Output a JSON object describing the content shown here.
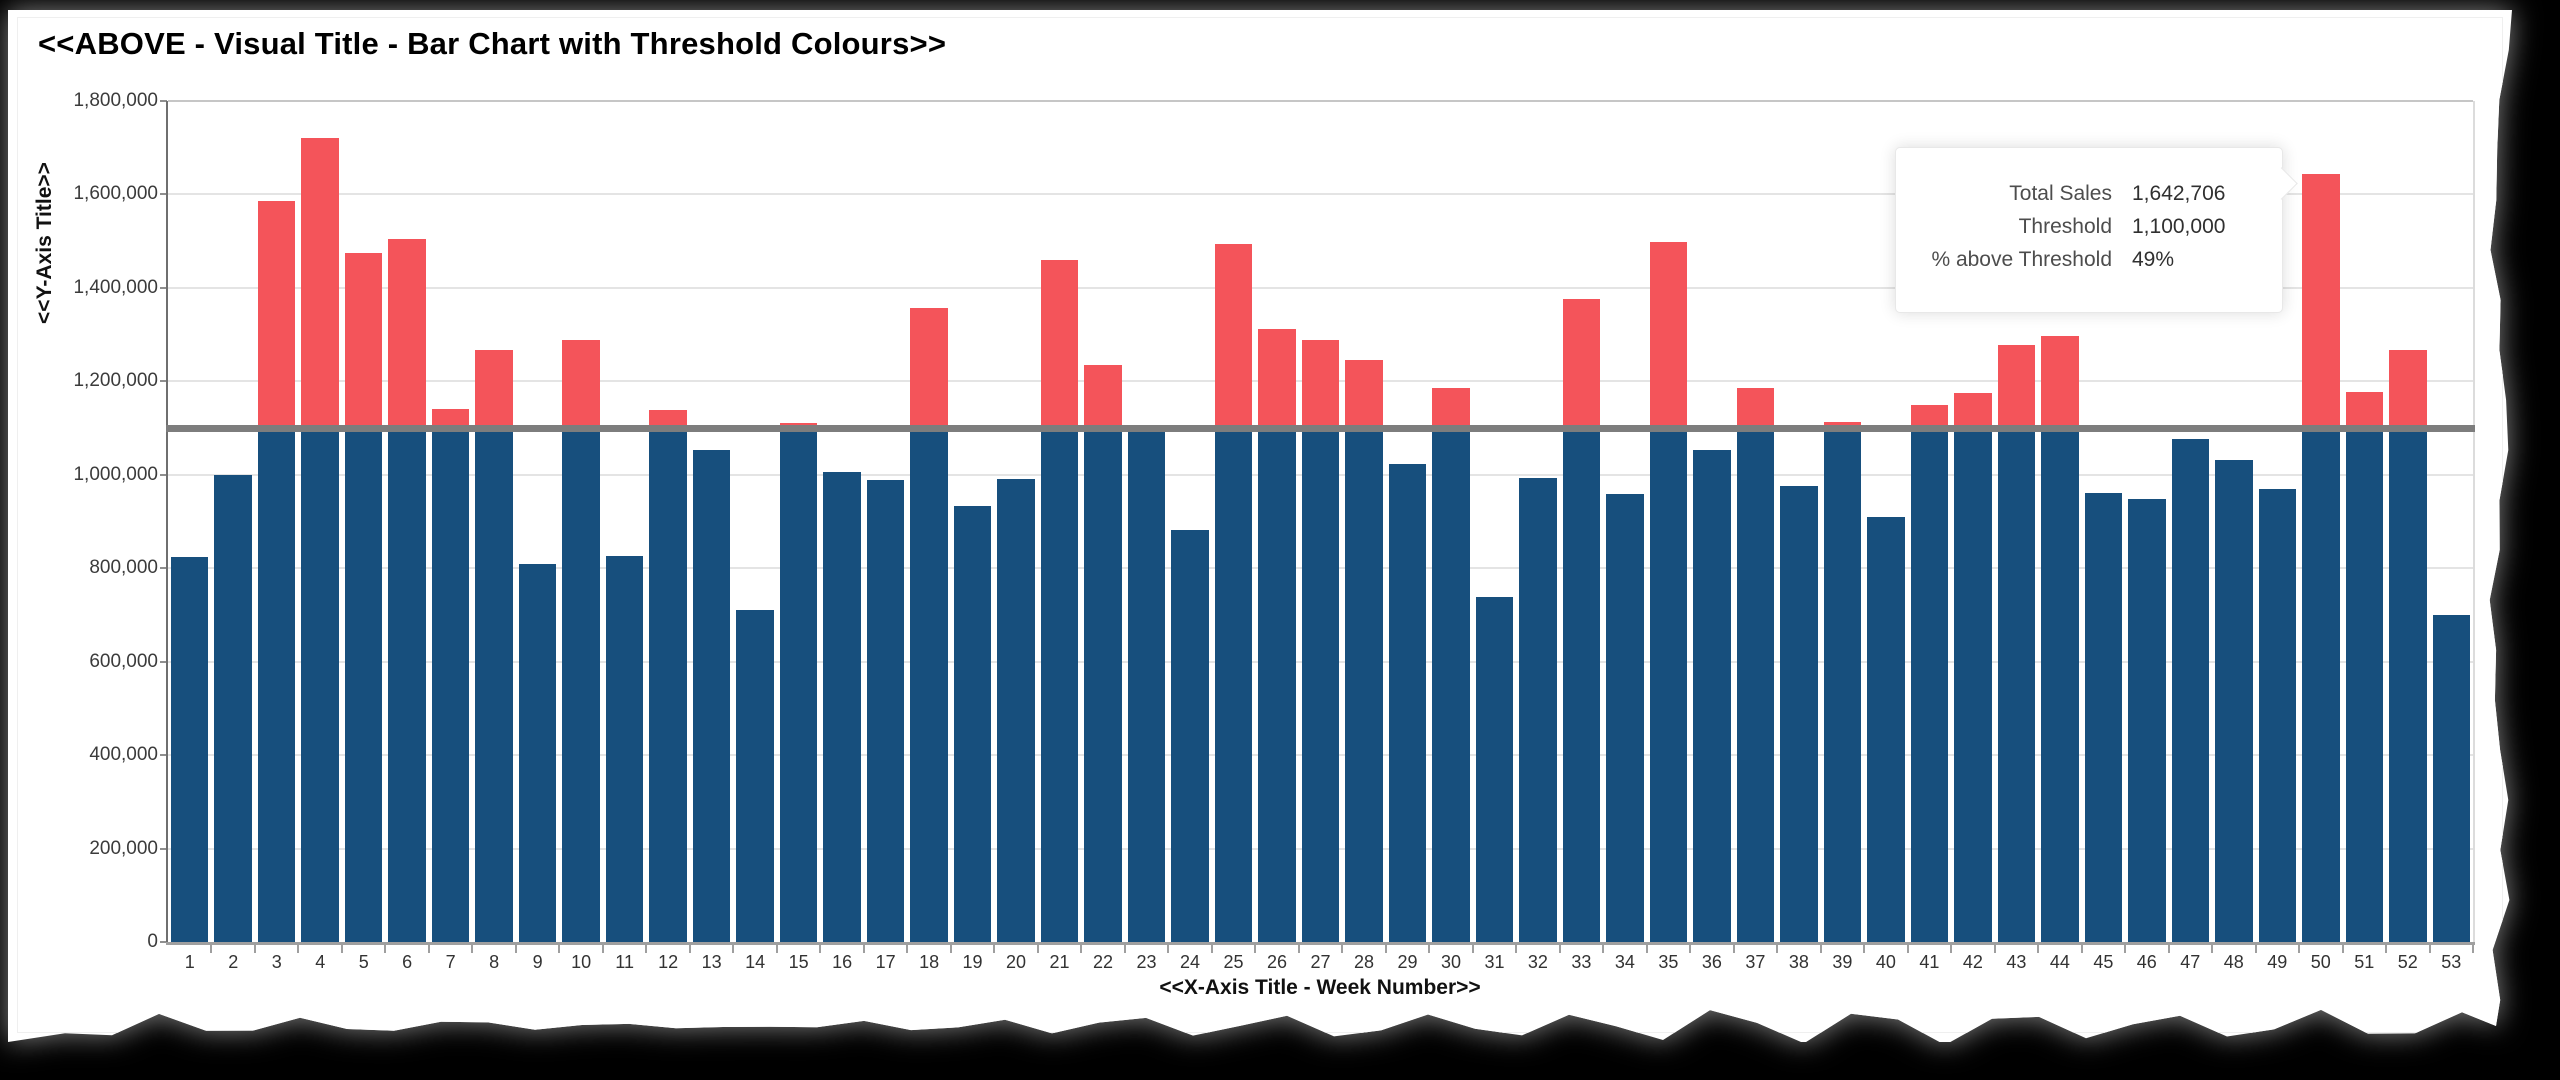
{
  "title": "<<ABOVE - Visual Title - Bar Chart with Threshold Colours>>",
  "chart_data": {
    "type": "bar",
    "title": "<<ABOVE - Visual Title - Bar Chart with Threshold Colours>>",
    "xlabel": "<<X-Axis Title - Week Number>>",
    "ylabel": "<<Y-Axis Title>>",
    "categories": [
      "1",
      "2",
      "3",
      "4",
      "5",
      "6",
      "7",
      "8",
      "9",
      "10",
      "11",
      "12",
      "13",
      "14",
      "15",
      "16",
      "17",
      "18",
      "19",
      "20",
      "21",
      "22",
      "23",
      "24",
      "25",
      "26",
      "27",
      "28",
      "29",
      "30",
      "31",
      "32",
      "33",
      "34",
      "35",
      "36",
      "37",
      "38",
      "39",
      "40",
      "41",
      "42",
      "43",
      "44",
      "45",
      "46",
      "47",
      "48",
      "49",
      "50",
      "51",
      "52",
      "53"
    ],
    "values": [
      825000,
      1000000,
      1587000,
      1721000,
      1475000,
      1505000,
      1141000,
      1266000,
      810000,
      1289000,
      827000,
      1138000,
      1053000,
      710000,
      1110000,
      1006000,
      988000,
      1356000,
      934000,
      991000,
      1459000,
      1234000,
      1096000,
      881000,
      1495000,
      1313000,
      1288000,
      1246000,
      1023000,
      1186000,
      738000,
      994000,
      1377000,
      958000,
      1498000,
      1052000,
      1186000,
      975000,
      1113000,
      909000,
      1150000,
      1175000,
      1277000,
      1296000,
      961000,
      949000,
      1076000,
      1031000,
      969000,
      1642706,
      1177000,
      1267000,
      700000
    ],
    "threshold": 1100000,
    "ylim": [
      0,
      1800000
    ],
    "ytick_step": 200000,
    "ytick_labels": [
      "0",
      "200,000",
      "400,000",
      "600,000",
      "800,000",
      "1,000,000",
      "1,200,000",
      "1,400,000",
      "1,600,000",
      "1,800,000"
    ],
    "grid": true,
    "legend": "none",
    "colors": {
      "below_threshold": "#174f7d",
      "above_threshold": "#f4545a",
      "threshold_line": "#7d7d7d"
    }
  },
  "tooltip": {
    "target_week": "50",
    "rows": [
      {
        "label": "Total Sales",
        "value": "1,642,706"
      },
      {
        "label": "Threshold",
        "value": "1,100,000"
      },
      {
        "label": "% above Threshold",
        "value": "49%"
      }
    ]
  }
}
